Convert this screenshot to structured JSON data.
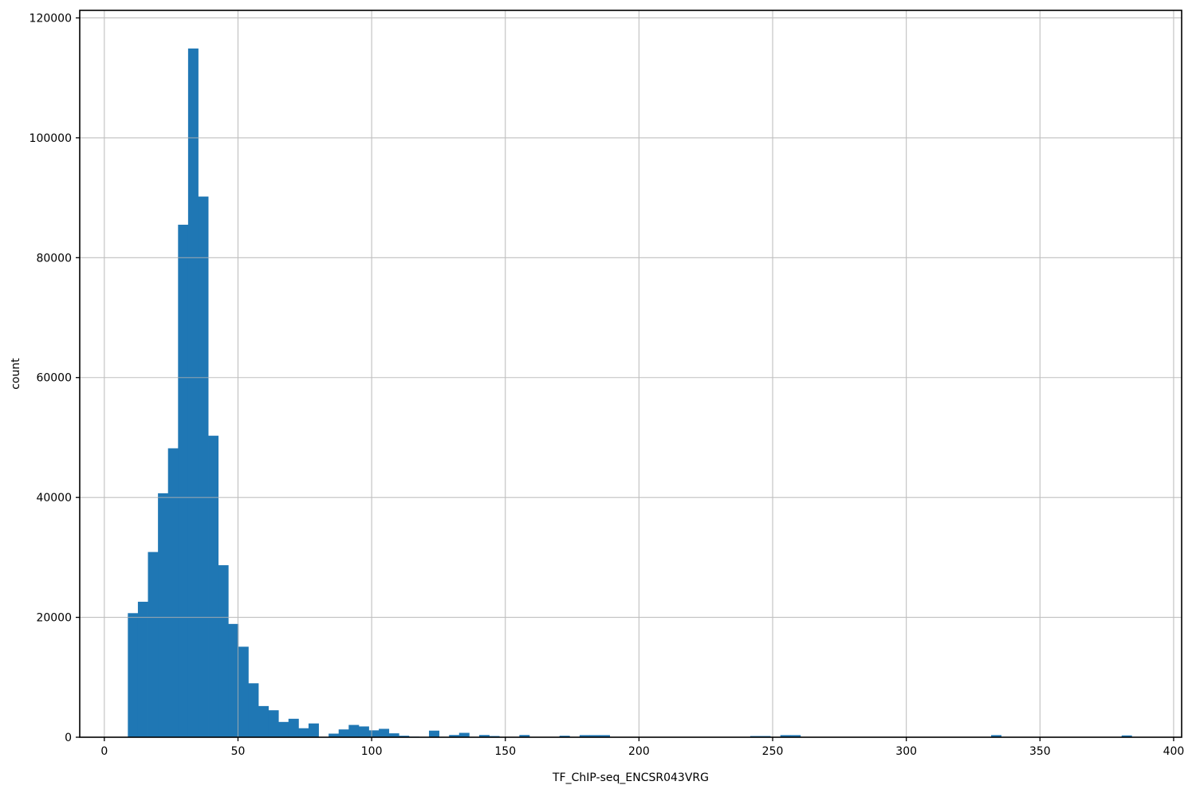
{
  "figure": {
    "background_color": "#ffffff",
    "bar_color": "#1f77b4",
    "grid_color": "#b0b0b0",
    "spine_color": "#000000",
    "tick_color": "#000000",
    "tick_label_color": "#000000"
  },
  "chart_data": {
    "type": "bar",
    "subtype": "histogram",
    "title": "",
    "xlabel": "TF_ChIP-seq_ENCSR043VRG",
    "ylabel": "count",
    "grid": true,
    "grid_on_top": true,
    "legend": null,
    "xlim": [
      -9.2,
      403.0
    ],
    "ylim": [
      0,
      121260
    ],
    "x_ticks": [
      0,
      50,
      100,
      150,
      200,
      250,
      300,
      350,
      400
    ],
    "y_ticks": [
      0,
      20000,
      40000,
      60000,
      80000,
      100000,
      120000
    ],
    "bin_start": 8.8,
    "bin_width": 3.755,
    "counts": [
      20700,
      22600,
      30900,
      40700,
      48200,
      85500,
      114900,
      90200,
      50300,
      28700,
      18900,
      15100,
      9000,
      5200,
      4500,
      2550,
      3080,
      1500,
      2300,
      0,
      600,
      1300,
      2050,
      1800,
      1150,
      1400,
      650,
      250,
      100,
      0,
      1100,
      0,
      370,
      730,
      0,
      370,
      200,
      0,
      0,
      370,
      0,
      0,
      0,
      250,
      0,
      350,
      350,
      350,
      0,
      0,
      0,
      0,
      0,
      0,
      0,
      0,
      0,
      0,
      0,
      0,
      0,
      0,
      200,
      200,
      0,
      350,
      350,
      0,
      0,
      0,
      0,
      0,
      0,
      0,
      0,
      0,
      0,
      0,
      0,
      0,
      0,
      0,
      0,
      0,
      0,
      0,
      350,
      0,
      0,
      0,
      0,
      0,
      0,
      0,
      0,
      0,
      0,
      0,
      0,
      300
    ]
  }
}
